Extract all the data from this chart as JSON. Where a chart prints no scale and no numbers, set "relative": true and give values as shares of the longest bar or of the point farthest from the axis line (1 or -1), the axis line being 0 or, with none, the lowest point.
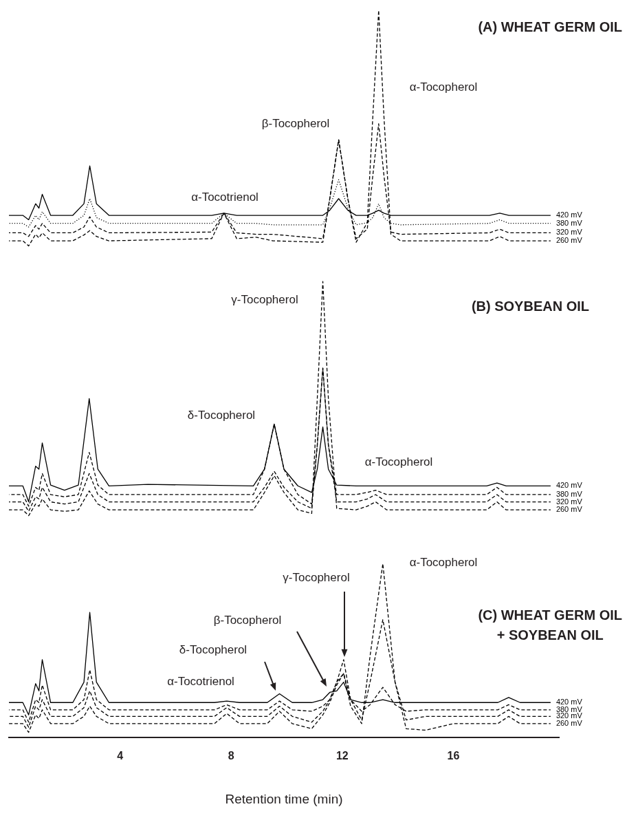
{
  "chart_data": {
    "type": "line",
    "xlabel": "Retention time (min)",
    "relative": true,
    "xlim": [
      0,
      19.8
    ],
    "xticks": [
      4,
      8,
      12,
      16
    ],
    "tick_labels": "x",
    "grid": false,
    "marker": "none",
    "series": [
      {
        "name": "420 mV",
        "color": "#000000",
        "line_style": "solid",
        "x": [
          0,
          0.5,
          0.71,
          0.96,
          1.08,
          1.2,
          1.5,
          2.3,
          2.7,
          2.91,
          3.15,
          3.6,
          7.3,
          7.74,
          8.2,
          8.9,
          9.5,
          11.3,
          11.55,
          11.87,
          12.2,
          12.5,
          12.9,
          13.1,
          13.31,
          13.5,
          13.75,
          14.1,
          17.3,
          17.67,
          18.0,
          19.5
        ],
        "values": [
          0.718,
          0.718,
          0.712,
          0.734,
          0.728,
          0.747,
          0.718,
          0.718,
          0.734,
          0.786,
          0.734,
          0.718,
          0.718,
          0.721,
          0.718,
          0.718,
          0.718,
          0.718,
          0.725,
          0.741,
          0.725,
          0.718,
          0.718,
          0.721,
          0.725,
          0.721,
          0.718,
          0.718,
          0.718,
          0.721,
          0.718,
          0.718
        ]
      },
      {
        "name": "380 mV",
        "color": "#000000",
        "line_style": "dotted",
        "x": [
          0,
          0.5,
          0.71,
          0.96,
          1.08,
          1.2,
          1.5,
          2.3,
          2.7,
          2.91,
          3.15,
          3.6,
          7.3,
          7.74,
          8.2,
          8.9,
          9.5,
          11.3,
          11.55,
          11.87,
          12.2,
          12.5,
          12.9,
          13.1,
          13.31,
          13.5,
          13.75,
          14.1,
          17.3,
          17.67,
          18.0,
          19.5
        ],
        "values": [
          0.707,
          0.707,
          0.702,
          0.718,
          0.712,
          0.723,
          0.707,
          0.707,
          0.718,
          0.741,
          0.715,
          0.707,
          0.707,
          0.721,
          0.707,
          0.707,
          0.705,
          0.705,
          0.728,
          0.767,
          0.728,
          0.705,
          0.708,
          0.715,
          0.734,
          0.715,
          0.707,
          0.705,
          0.707,
          0.712,
          0.707,
          0.707
        ]
      },
      {
        "name": "320 mV",
        "color": "#000000",
        "line_style": "dashed",
        "x": [
          0,
          0.5,
          0.71,
          0.96,
          1.08,
          1.2,
          1.5,
          2.3,
          2.7,
          2.91,
          3.15,
          3.6,
          7.3,
          7.74,
          8.2,
          8.9,
          9.5,
          11.3,
          11.55,
          11.87,
          12.2,
          12.5,
          12.9,
          13.1,
          13.31,
          13.5,
          13.75,
          14.1,
          17.3,
          17.67,
          18.0,
          19.5
        ],
        "values": [
          0.694,
          0.694,
          0.689,
          0.704,
          0.699,
          0.707,
          0.694,
          0.694,
          0.702,
          0.716,
          0.702,
          0.694,
          0.695,
          0.721,
          0.694,
          0.692,
          0.692,
          0.686,
          0.741,
          0.822,
          0.741,
          0.686,
          0.699,
          0.773,
          0.844,
          0.773,
          0.695,
          0.692,
          0.694,
          0.699,
          0.694,
          0.694
        ]
      },
      {
        "name": "260 mV",
        "color": "#000000",
        "line_style": "dashed",
        "x": [
          0,
          0.5,
          0.71,
          0.96,
          1.08,
          1.2,
          1.5,
          2.3,
          2.7,
          2.91,
          3.15,
          3.6,
          7.3,
          7.74,
          8.2,
          8.9,
          9.5,
          11.3,
          11.55,
          11.87,
          12.2,
          12.5,
          12.9,
          13.1,
          13.31,
          13.5,
          13.75,
          14.1,
          17.3,
          17.67,
          18.0,
          19.5
        ],
        "values": [
          0.683,
          0.683,
          0.676,
          0.692,
          0.687,
          0.694,
          0.683,
          0.683,
          0.691,
          0.697,
          0.689,
          0.683,
          0.686,
          0.721,
          0.686,
          0.688,
          0.683,
          0.681,
          0.741,
          0.822,
          0.741,
          0.681,
          0.708,
          0.854,
          1.0,
          0.854,
          0.692,
          0.683,
          0.683,
          0.689,
          0.683,
          0.683
        ]
      },
      {
        "name": "420 mV",
        "color": "#000000",
        "line_style": "solid",
        "x": [
          0,
          0.5,
          0.71,
          0.96,
          1.08,
          1.2,
          1.5,
          2.0,
          2.5,
          2.89,
          3.2,
          3.6,
          5.0,
          8.8,
          9.2,
          9.55,
          9.9,
          10.4,
          10.9,
          11.1,
          11.3,
          11.5,
          11.8,
          12.5,
          12.9,
          13.2,
          13.6,
          14.2,
          17.2,
          17.57,
          17.9,
          19.5
        ],
        "values": [
          0.346,
          0.346,
          0.324,
          0.373,
          0.369,
          0.405,
          0.347,
          0.34,
          0.347,
          0.466,
          0.369,
          0.346,
          0.348,
          0.346,
          0.369,
          0.431,
          0.369,
          0.346,
          0.337,
          0.369,
          0.427,
          0.369,
          0.347,
          0.346,
          0.346,
          0.346,
          0.346,
          0.346,
          0.346,
          0.35,
          0.346,
          0.346
        ]
      },
      {
        "name": "380 mV",
        "color": "#000000",
        "line_style": "dashed",
        "x": [
          0,
          0.5,
          0.71,
          0.96,
          1.08,
          1.2,
          1.5,
          2.0,
          2.5,
          2.89,
          3.2,
          3.6,
          5.0,
          8.8,
          9.2,
          9.55,
          9.9,
          10.4,
          10.9,
          11.1,
          11.3,
          11.5,
          11.8,
          12.5,
          12.9,
          13.2,
          13.6,
          14.2,
          17.2,
          17.57,
          17.9,
          19.5
        ],
        "values": [
          0.334,
          0.334,
          0.318,
          0.344,
          0.34,
          0.363,
          0.334,
          0.331,
          0.334,
          0.392,
          0.347,
          0.334,
          0.334,
          0.334,
          0.369,
          0.431,
          0.369,
          0.334,
          0.321,
          0.402,
          0.508,
          0.402,
          0.334,
          0.334,
          0.337,
          0.34,
          0.334,
          0.334,
          0.334,
          0.344,
          0.334,
          0.334
        ]
      },
      {
        "name": "320 mV",
        "color": "#000000",
        "line_style": "dashed",
        "x": [
          0,
          0.5,
          0.71,
          0.96,
          1.08,
          1.2,
          1.5,
          2.0,
          2.5,
          2.89,
          3.2,
          3.6,
          5.0,
          8.8,
          9.2,
          9.55,
          9.9,
          10.4,
          10.9,
          11.1,
          11.3,
          11.5,
          11.8,
          12.5,
          12.9,
          13.2,
          13.6,
          14.2,
          17.2,
          17.57,
          17.9,
          19.5
        ],
        "values": [
          0.324,
          0.324,
          0.311,
          0.331,
          0.328,
          0.344,
          0.324,
          0.321,
          0.324,
          0.363,
          0.334,
          0.324,
          0.324,
          0.324,
          0.344,
          0.366,
          0.344,
          0.324,
          0.315,
          0.402,
          0.508,
          0.402,
          0.324,
          0.324,
          0.328,
          0.334,
          0.324,
          0.324,
          0.324,
          0.334,
          0.324,
          0.324
        ]
      },
      {
        "name": "260 mV",
        "color": "#000000",
        "line_style": "dashed",
        "x": [
          0,
          0.5,
          0.71,
          0.96,
          1.08,
          1.2,
          1.5,
          2.0,
          2.5,
          2.89,
          3.2,
          3.6,
          5.0,
          8.8,
          9.2,
          9.55,
          9.9,
          10.4,
          10.9,
          11.1,
          11.3,
          11.5,
          11.8,
          12.5,
          12.9,
          13.2,
          13.6,
          14.2,
          17.2,
          17.57,
          17.9,
          19.5
        ],
        "values": [
          0.313,
          0.313,
          0.305,
          0.321,
          0.318,
          0.328,
          0.313,
          0.311,
          0.313,
          0.339,
          0.321,
          0.313,
          0.313,
          0.313,
          0.337,
          0.36,
          0.337,
          0.313,
          0.308,
          0.466,
          0.627,
          0.466,
          0.315,
          0.313,
          0.318,
          0.324,
          0.313,
          0.313,
          0.313,
          0.324,
          0.313,
          0.313
        ]
      },
      {
        "name": "420 mV",
        "color": "#000000",
        "line_style": "solid",
        "x": [
          0,
          0.5,
          0.71,
          0.96,
          1.08,
          1.2,
          1.5,
          2.3,
          2.7,
          2.91,
          3.15,
          3.6,
          7.4,
          7.84,
          8.3,
          9.3,
          9.74,
          10.2,
          10.9,
          11.3,
          11.55,
          11.8,
          12.05,
          12.3,
          12.7,
          13.0,
          13.46,
          13.9,
          14.3,
          15.0,
          16.0,
          17.6,
          17.99,
          18.4,
          19.5
        ],
        "values": [
          0.048,
          0.048,
          0.031,
          0.074,
          0.064,
          0.107,
          0.048,
          0.048,
          0.076,
          0.172,
          0.076,
          0.048,
          0.048,
          0.05,
          0.048,
          0.048,
          0.06,
          0.048,
          0.048,
          0.052,
          0.062,
          0.064,
          0.076,
          0.052,
          0.048,
          0.048,
          0.052,
          0.048,
          0.048,
          0.048,
          0.048,
          0.048,
          0.055,
          0.048,
          0.048
        ]
      },
      {
        "name": "380 mV",
        "color": "#000000",
        "line_style": "dashed",
        "x": [
          0,
          0.5,
          0.71,
          0.96,
          1.08,
          1.2,
          1.5,
          2.3,
          2.7,
          2.91,
          3.15,
          3.6,
          7.4,
          7.84,
          8.3,
          9.3,
          9.74,
          10.2,
          10.9,
          11.3,
          11.55,
          11.8,
          12.05,
          12.3,
          12.7,
          13.0,
          13.46,
          13.9,
          14.3,
          15.0,
          16.0,
          17.6,
          17.99,
          18.4,
          19.5
        ],
        "values": [
          0.038,
          0.038,
          0.021,
          0.052,
          0.048,
          0.072,
          0.038,
          0.038,
          0.052,
          0.093,
          0.052,
          0.038,
          0.038,
          0.045,
          0.038,
          0.038,
          0.05,
          0.038,
          0.036,
          0.043,
          0.052,
          0.076,
          0.107,
          0.052,
          0.036,
          0.045,
          0.069,
          0.045,
          0.036,
          0.038,
          0.038,
          0.038,
          0.045,
          0.038,
          0.038
        ]
      },
      {
        "name": "320 mV",
        "color": "#000000",
        "line_style": "dashed",
        "x": [
          0,
          0.5,
          0.71,
          0.96,
          1.08,
          1.2,
          1.5,
          2.3,
          2.7,
          2.91,
          3.15,
          3.6,
          7.4,
          7.84,
          8.3,
          9.3,
          9.74,
          10.2,
          10.9,
          11.3,
          11.55,
          11.8,
          12.05,
          12.3,
          12.7,
          13.0,
          13.46,
          13.9,
          14.3,
          15.0,
          16.0,
          17.6,
          17.99,
          18.4,
          19.5
        ],
        "values": [
          0.029,
          0.029,
          0.014,
          0.043,
          0.038,
          0.052,
          0.029,
          0.029,
          0.041,
          0.064,
          0.041,
          0.029,
          0.029,
          0.041,
          0.029,
          0.029,
          0.043,
          0.029,
          0.021,
          0.036,
          0.052,
          0.076,
          0.088,
          0.052,
          0.024,
          0.076,
          0.162,
          0.076,
          0.024,
          0.029,
          0.029,
          0.029,
          0.038,
          0.029,
          0.029
        ]
      },
      {
        "name": "260 mV",
        "color": "#000000",
        "line_style": "dashed",
        "x": [
          0,
          0.5,
          0.71,
          0.96,
          1.08,
          1.2,
          1.5,
          2.3,
          2.7,
          2.91,
          3.15,
          3.6,
          7.4,
          7.84,
          8.3,
          9.3,
          9.74,
          10.2,
          10.9,
          11.3,
          11.55,
          11.8,
          12.05,
          12.3,
          12.7,
          13.0,
          13.46,
          13.9,
          14.3,
          15.0,
          16.0,
          17.6,
          17.99,
          18.4,
          19.5
        ],
        "values": [
          0.019,
          0.019,
          0.007,
          0.031,
          0.026,
          0.038,
          0.019,
          0.019,
          0.029,
          0.043,
          0.029,
          0.019,
          0.019,
          0.033,
          0.019,
          0.019,
          0.036,
          0.019,
          0.012,
          0.031,
          0.048,
          0.072,
          0.088,
          0.043,
          0.019,
          0.112,
          0.239,
          0.076,
          0.012,
          0.01,
          0.019,
          0.019,
          0.029,
          0.019,
          0.019
        ]
      }
    ],
    "annotations": [
      "(A) WHEAT GERM OIL",
      "α-Tocopherol",
      "β-Tocopherol",
      "α-Tocotrienol",
      "γ-Tocopherol",
      "(B) SOYBEAN OIL",
      "δ-Tocopherol",
      "α-Tocopherol",
      "α-Tocopherol",
      "γ-Tocopherol",
      "(C) WHEAT GERM OIL\n+ SOYBEAN OIL",
      "β-Tocopherol",
      "δ-Tocopherol",
      "α-Tocotrienol"
    ]
  }
}
